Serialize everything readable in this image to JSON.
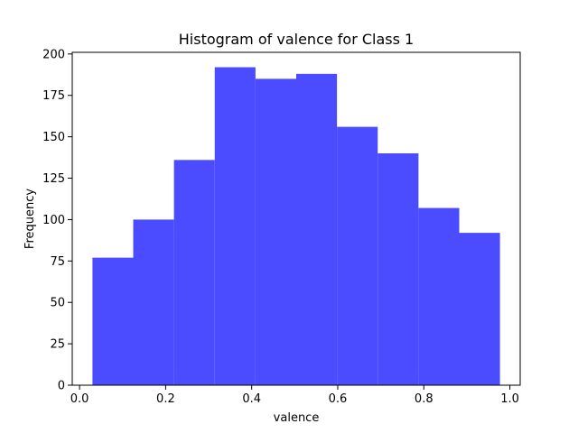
{
  "chart_data": {
    "type": "bar",
    "title": "Histogram of valence for Class 1",
    "xlabel": "valence",
    "ylabel": "Frequency",
    "bin_edges": [
      0.03,
      0.1247,
      0.2194,
      0.3141,
      0.4088,
      0.5035,
      0.5982,
      0.6929,
      0.7876,
      0.8823,
      0.977
    ],
    "values": [
      77,
      100,
      136,
      192,
      185,
      188,
      156,
      140,
      107,
      92
    ],
    "xlim": [
      -0.017,
      1.024
    ],
    "ylim": [
      0,
      201
    ],
    "xticks": [
      0.0,
      0.2,
      0.4,
      0.6,
      0.8,
      1.0
    ],
    "xtick_labels": [
      "0.0",
      "0.2",
      "0.4",
      "0.6",
      "0.8",
      "1.0"
    ],
    "yticks": [
      0,
      25,
      50,
      75,
      100,
      125,
      150,
      175,
      200
    ],
    "ytick_labels": [
      "0",
      "25",
      "50",
      "75",
      "100",
      "125",
      "150",
      "175",
      "200"
    ],
    "bar_color": "#4b4bff",
    "grid": false,
    "legend": "none"
  }
}
